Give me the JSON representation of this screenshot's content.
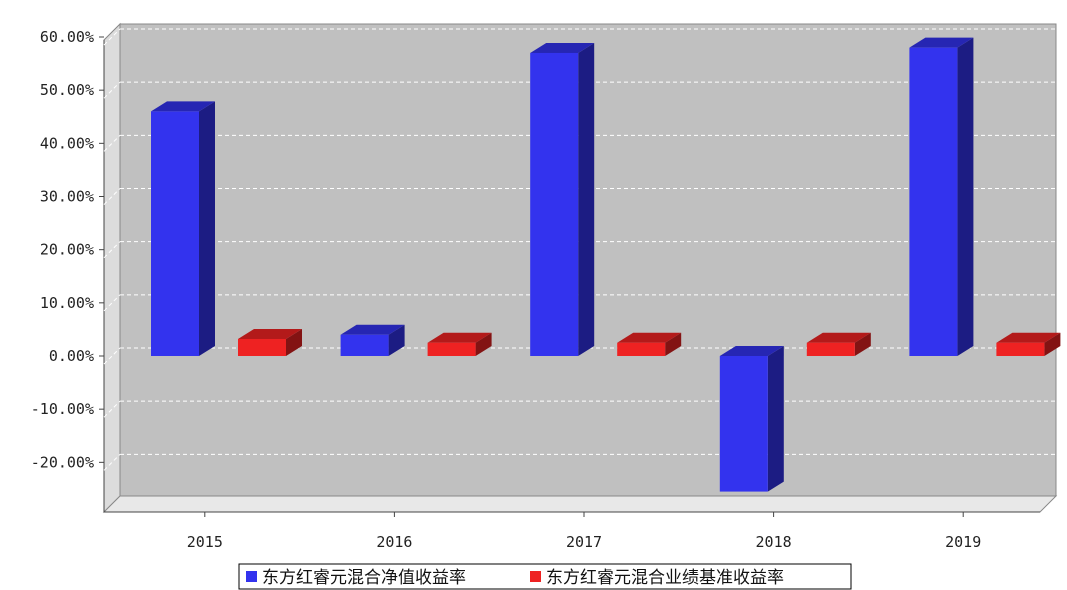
{
  "chart_data": {
    "type": "bar",
    "categories": [
      "2015",
      "2016",
      "2017",
      "2018",
      "2019"
    ],
    "series": [
      {
        "name": "东方红睿元混合净值收益率",
        "values": [
          46.0,
          4.0,
          57.0,
          -25.5,
          58.0
        ],
        "color": "#3333ee"
      },
      {
        "name": "东方红睿元混合业绩基准收益率",
        "values": [
          3.2,
          2.5,
          2.5,
          2.5,
          2.5
        ],
        "color": "#ee2222"
      }
    ],
    "yticks": [
      "60.00%",
      "50.00%",
      "40.00%",
      "30.00%",
      "20.00%",
      "10.00%",
      "0.00%",
      "-10.00%",
      "-20.00%"
    ],
    "ytick_values": [
      60,
      50,
      40,
      30,
      20,
      10,
      0,
      -10,
      -20
    ],
    "ylim": [
      -29,
      63
    ],
    "grid": true,
    "legend_position": "bottom-center",
    "style": "3d",
    "plot_background": "#c0c0c0"
  }
}
